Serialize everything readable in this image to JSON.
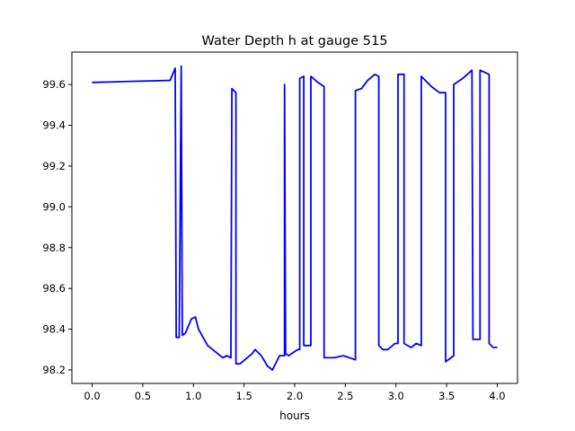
{
  "chart_data": {
    "type": "line",
    "title": "Water Depth h at gauge 515",
    "xlabel": "hours",
    "ylabel": "",
    "xlim": [
      -0.2,
      4.2
    ],
    "ylim": [
      98.134,
      99.759
    ],
    "xticks": [
      0.0,
      0.5,
      1.0,
      1.5,
      2.0,
      2.5,
      3.0,
      3.5,
      4.0
    ],
    "xtick_labels": [
      "0.0",
      "0.5",
      "1.0",
      "1.5",
      "2.0",
      "2.5",
      "3.0",
      "3.5",
      "4.0"
    ],
    "yticks": [
      98.2,
      98.4,
      98.6,
      98.8,
      99.0,
      99.2,
      99.4,
      99.6
    ],
    "ytick_labels": [
      "98.2",
      "98.4",
      "98.6",
      "98.8",
      "99.0",
      "99.2",
      "99.4",
      "99.6"
    ],
    "grid": false,
    "series": [
      {
        "name": "h",
        "color": "#0000ff",
        "x": [
          0.0,
          0.74,
          0.77,
          0.82,
          0.83,
          0.86,
          0.88,
          0.89,
          0.92,
          0.98,
          1.02,
          1.05,
          1.14,
          1.29,
          1.33,
          1.37,
          1.38,
          1.42,
          1.42,
          1.46,
          1.58,
          1.61,
          1.67,
          1.73,
          1.78,
          1.85,
          1.9,
          1.9,
          1.91,
          1.94,
          2.03,
          2.05,
          2.05,
          2.09,
          2.09,
          2.16,
          2.16,
          2.23,
          2.29,
          2.29,
          2.39,
          2.48,
          2.6,
          2.6,
          2.66,
          2.72,
          2.79,
          2.83,
          2.83,
          2.87,
          2.92,
          2.99,
          3.02,
          3.02,
          3.08,
          3.08,
          3.15,
          3.2,
          3.25,
          3.25,
          3.35,
          3.43,
          3.49,
          3.49,
          3.57,
          3.57,
          3.66,
          3.75,
          3.76,
          3.83,
          3.83,
          3.92,
          3.92,
          3.96,
          4.0
        ],
        "y": [
          99.61,
          99.62,
          99.62,
          99.68,
          98.36,
          98.36,
          99.69,
          98.37,
          98.38,
          98.45,
          98.46,
          98.4,
          98.32,
          98.26,
          98.27,
          98.26,
          99.58,
          99.56,
          98.23,
          98.23,
          98.28,
          98.3,
          98.27,
          98.22,
          98.2,
          98.27,
          98.27,
          99.6,
          98.28,
          98.27,
          98.3,
          98.3,
          99.63,
          99.64,
          98.32,
          98.32,
          99.64,
          99.61,
          99.59,
          98.26,
          98.26,
          98.27,
          98.25,
          99.57,
          99.58,
          99.62,
          99.65,
          99.64,
          98.32,
          98.3,
          98.3,
          98.33,
          98.33,
          99.65,
          99.65,
          98.33,
          98.31,
          98.33,
          98.32,
          99.64,
          99.59,
          99.56,
          99.56,
          98.24,
          98.27,
          99.6,
          99.63,
          99.67,
          98.35,
          98.35,
          99.67,
          99.65,
          98.33,
          98.31,
          98.31
        ]
      }
    ]
  }
}
